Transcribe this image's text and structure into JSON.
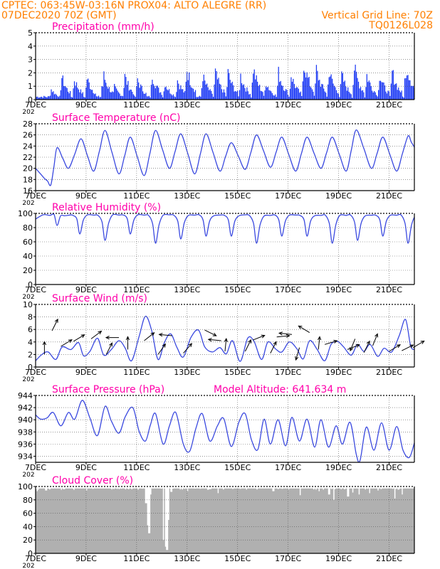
{
  "header": {
    "line1_left": "CPTEC:   063:45W-03:16N   PROX04: ALTO ALEGRE (RR)",
    "line2_left": "07DEC2020 70Z (GMT)",
    "line2_right": "Vertical Grid Line: 70Z",
    "line3_right": "TQ0126L028"
  },
  "colors": {
    "header": "#ff7f00",
    "title": "#ff00aa",
    "series": "#3a49e0",
    "bars": "#1f3cf5",
    "cloud": "#b0b0b0",
    "arrows": "#000000"
  },
  "x_axis": {
    "range": [
      7,
      22
    ],
    "tick_values": [
      7,
      9,
      11,
      13,
      15,
      17,
      19,
      21
    ],
    "tick_labels": [
      "7DEC",
      "9DEC",
      "11DEC",
      "13DEC",
      "15DEC",
      "17DEC",
      "19DEC",
      "21DEC"
    ],
    "year_fragment": "202"
  },
  "chart_data": [
    {
      "type": "bar",
      "title": "Precipitation (mm/h)",
      "ylim": [
        0,
        5
      ],
      "yticks": [
        0,
        1,
        2,
        3,
        4,
        5
      ],
      "grid": true,
      "peaks": [
        {
          "day": 7.6,
          "value": 1.0
        },
        {
          "day": 8.0,
          "value": 2.3
        },
        {
          "day": 8.5,
          "value": 2.1
        },
        {
          "day": 9.0,
          "value": 2.2
        },
        {
          "day": 9.65,
          "value": 2.6
        },
        {
          "day": 10.1,
          "value": 1.2
        },
        {
          "day": 10.5,
          "value": 2.4
        },
        {
          "day": 11.0,
          "value": 2.1
        },
        {
          "day": 11.6,
          "value": 2.4
        },
        {
          "day": 12.1,
          "value": 1.6
        },
        {
          "day": 12.6,
          "value": 1.9
        },
        {
          "day": 12.95,
          "value": 3.2
        },
        {
          "day": 13.6,
          "value": 2.3
        },
        {
          "day": 14.1,
          "value": 2.6
        },
        {
          "day": 14.6,
          "value": 2.6
        },
        {
          "day": 15.1,
          "value": 2.3
        },
        {
          "day": 15.6,
          "value": 3.0
        },
        {
          "day": 16.1,
          "value": 1.7
        },
        {
          "day": 16.6,
          "value": 2.6
        },
        {
          "day": 17.1,
          "value": 2.4
        },
        {
          "day": 17.6,
          "value": 3.7
        },
        {
          "day": 18.1,
          "value": 2.9
        },
        {
          "day": 18.6,
          "value": 2.8
        },
        {
          "day": 19.1,
          "value": 2.4
        },
        {
          "day": 19.6,
          "value": 3.1
        },
        {
          "day": 20.1,
          "value": 2.4
        },
        {
          "day": 20.6,
          "value": 2.4
        },
        {
          "day": 21.1,
          "value": 2.7
        },
        {
          "day": 21.65,
          "value": 3.7
        }
      ]
    },
    {
      "type": "line",
      "title": "Surface Temperature (nC)",
      "ylim": [
        16,
        28
      ],
      "yticks": [
        16,
        18,
        20,
        22,
        24,
        26,
        28
      ],
      "grid": true,
      "min_points": [
        [
          7.35,
          18.2
        ],
        [
          7.6,
          17.0
        ],
        [
          8.3,
          20.0
        ],
        [
          9.3,
          19.5
        ],
        [
          10.3,
          19.0
        ],
        [
          11.3,
          18.7
        ],
        [
          12.3,
          20.0
        ],
        [
          13.3,
          19.0
        ],
        [
          14.3,
          19.5
        ],
        [
          15.3,
          19.8
        ],
        [
          16.3,
          20.2
        ],
        [
          17.3,
          19.5
        ],
        [
          18.3,
          20.0
        ],
        [
          19.3,
          19.5
        ],
        [
          20.3,
          20.0
        ],
        [
          21.3,
          19.5
        ]
      ],
      "max_points": [
        [
          7.85,
          23.7
        ],
        [
          8.8,
          25.3
        ],
        [
          9.75,
          26.8
        ],
        [
          10.75,
          25.6
        ],
        [
          11.75,
          26.8
        ],
        [
          12.75,
          26.2
        ],
        [
          13.75,
          26.2
        ],
        [
          14.75,
          24.6
        ],
        [
          15.75,
          26.0
        ],
        [
          16.75,
          25.6
        ],
        [
          17.75,
          25.6
        ],
        [
          18.75,
          25.6
        ],
        [
          19.7,
          26.9
        ],
        [
          20.75,
          25.6
        ],
        [
          21.75,
          25.8
        ]
      ],
      "start": [
        7.0,
        20.0
      ],
      "end": [
        22.0,
        23.8
      ]
    },
    {
      "type": "line",
      "title": "Relative Humidity (%)",
      "ylim": [
        0,
        100
      ],
      "yticks": [
        0,
        20,
        40,
        60,
        80,
        100
      ],
      "grid": true,
      "min_points": [
        [
          7.85,
          83
        ],
        [
          8.75,
          71
        ],
        [
          9.75,
          62
        ],
        [
          10.75,
          71
        ],
        [
          11.75,
          58
        ],
        [
          12.75,
          64
        ],
        [
          13.75,
          68
        ],
        [
          14.75,
          68
        ],
        [
          15.75,
          58
        ],
        [
          16.75,
          68
        ],
        [
          17.75,
          68
        ],
        [
          18.75,
          58
        ],
        [
          19.75,
          62
        ],
        [
          20.75,
          68
        ],
        [
          21.75,
          58
        ]
      ],
      "high_level": 98
    },
    {
      "type": "line",
      "title": "Surface Wind (m/s)",
      "ylim": [
        0,
        10
      ],
      "yticks": [
        0,
        2,
        4,
        6,
        8,
        10
      ],
      "grid": true,
      "series_points": [
        [
          7.0,
          1.0
        ],
        [
          7.25,
          2.0
        ],
        [
          7.5,
          2.4
        ],
        [
          7.8,
          1.2
        ],
        [
          8.05,
          3.2
        ],
        [
          8.4,
          2.8
        ],
        [
          8.7,
          3.9
        ],
        [
          8.9,
          1.8
        ],
        [
          9.15,
          2.5
        ],
        [
          9.45,
          4.6
        ],
        [
          9.7,
          1.9
        ],
        [
          10.0,
          2.8
        ],
        [
          10.3,
          4.2
        ],
        [
          10.55,
          3.0
        ],
        [
          10.8,
          1.0
        ],
        [
          11.1,
          4.9
        ],
        [
          11.35,
          8.1
        ],
        [
          11.6,
          5.8
        ],
        [
          11.85,
          1.2
        ],
        [
          12.1,
          3.9
        ],
        [
          12.35,
          5.3
        ],
        [
          12.6,
          3.1
        ],
        [
          12.85,
          1.6
        ],
        [
          13.15,
          4.7
        ],
        [
          13.45,
          5.9
        ],
        [
          13.7,
          3.2
        ],
        [
          14.0,
          2.4
        ],
        [
          14.3,
          3.1
        ],
        [
          14.55,
          2.1
        ],
        [
          14.8,
          4.2
        ],
        [
          15.1,
          0.9
        ],
        [
          15.4,
          4.6
        ],
        [
          15.65,
          4.1
        ],
        [
          15.95,
          1.2
        ],
        [
          16.2,
          4.0
        ],
        [
          16.5,
          2.9
        ],
        [
          16.75,
          2.4
        ],
        [
          17.05,
          4.0
        ],
        [
          17.35,
          2.9
        ],
        [
          17.6,
          1.3
        ],
        [
          17.85,
          4.2
        ],
        [
          18.15,
          2.8
        ],
        [
          18.45,
          1.0
        ],
        [
          18.7,
          3.6
        ],
        [
          18.95,
          4.1
        ],
        [
          19.2,
          3.2
        ],
        [
          19.5,
          1.9
        ],
        [
          19.75,
          3.6
        ],
        [
          20.0,
          2.5
        ],
        [
          20.25,
          3.6
        ],
        [
          20.55,
          1.7
        ],
        [
          20.8,
          3.0
        ],
        [
          21.1,
          2.4
        ],
        [
          21.4,
          5.0
        ],
        [
          21.65,
          7.6
        ],
        [
          21.85,
          3.4
        ],
        [
          22.0,
          2.8
        ]
      ],
      "arrows": [
        {
          "day": 7.35,
          "speed": 2.0,
          "u": 0.0,
          "v": 1.0
        },
        {
          "day": 7.65,
          "speed": 5.8,
          "u": 0.5,
          "v": 1.0
        },
        {
          "day": 8.0,
          "speed": 3.3,
          "u": 1.0,
          "v": 0.6
        },
        {
          "day": 8.5,
          "speed": 4.1,
          "u": 1.0,
          "v": 0.6
        },
        {
          "day": 9.2,
          "speed": 4.5,
          "u": 0.8,
          "v": 0.6
        },
        {
          "day": 9.8,
          "speed": 2.0,
          "u": 0.5,
          "v": 1.0
        },
        {
          "day": 10.3,
          "speed": 4.7,
          "u": -1.0,
          "v": 0.0
        },
        {
          "day": 10.65,
          "speed": 2.8,
          "u": 0.0,
          "v": 1.0
        },
        {
          "day": 11.3,
          "speed": 4.2,
          "u": 1.0,
          "v": 0.8
        },
        {
          "day": 11.85,
          "speed": 2.0,
          "u": 0.7,
          "v": 1.0
        },
        {
          "day": 12.4,
          "speed": 5.0,
          "u": -1.0,
          "v": 0.1
        },
        {
          "day": 12.85,
          "speed": 2.2,
          "u": 0.7,
          "v": 0.8
        },
        {
          "day": 13.7,
          "speed": 5.9,
          "u": 1.0,
          "v": -0.5
        },
        {
          "day": 14.35,
          "speed": 4.2,
          "u": -1.0,
          "v": 0.1
        },
        {
          "day": 14.5,
          "speed": 2.5,
          "u": 0.1,
          "v": 1.0
        },
        {
          "day": 15.3,
          "speed": 2.5,
          "u": 0.5,
          "v": 1.0
        },
        {
          "day": 15.6,
          "speed": 4.3,
          "u": 1.0,
          "v": 0.4
        },
        {
          "day": 16.3,
          "speed": 2.2,
          "u": 0.5,
          "v": 1.0
        },
        {
          "day": 16.55,
          "speed": 4.8,
          "u": 1.0,
          "v": 0.1
        },
        {
          "day": 17.15,
          "speed": 5.2,
          "u": -1.0,
          "v": 0.1
        },
        {
          "day": 17.45,
          "speed": 3.1,
          "u": -0.3,
          "v": -1.0
        },
        {
          "day": 17.85,
          "speed": 5.5,
          "u": -1.0,
          "v": 0.6
        },
        {
          "day": 18.2,
          "speed": 2.8,
          "u": 0.1,
          "v": 1.0
        },
        {
          "day": 18.45,
          "speed": 3.6,
          "u": 1.0,
          "v": 0.3
        },
        {
          "day": 19.35,
          "speed": 2.8,
          "u": 1.0,
          "v": 0.4
        },
        {
          "day": 19.65,
          "speed": 4.5,
          "u": -0.4,
          "v": -1.0
        },
        {
          "day": 20.0,
          "speed": 2.3,
          "u": 0.5,
          "v": 1.0
        },
        {
          "day": 20.35,
          "speed": 3.4,
          "u": 0.4,
          "v": 1.0
        },
        {
          "day": 21.0,
          "speed": 2.5,
          "u": 1.0,
          "v": 0.6
        },
        {
          "day": 21.5,
          "speed": 2.6,
          "u": 1.0,
          "v": 0.5
        },
        {
          "day": 21.95,
          "speed": 3.1,
          "u": 1.0,
          "v": 0.6
        }
      ]
    },
    {
      "type": "line",
      "title": "Surface Pressure (hPa)",
      "annotation": "Model Altitude: 641.634 m",
      "ylim": [
        933,
        944
      ],
      "yticks": [
        934,
        936,
        938,
        940,
        942,
        944
      ],
      "grid": true,
      "series_points": [
        [
          7.0,
          940.8
        ],
        [
          7.2,
          940.1
        ],
        [
          7.45,
          940.3
        ],
        [
          7.7,
          941.2
        ],
        [
          8.0,
          939.0
        ],
        [
          8.3,
          941.2
        ],
        [
          8.55,
          940.1
        ],
        [
          8.85,
          943.2
        ],
        [
          9.15,
          940.3
        ],
        [
          9.45,
          937.4
        ],
        [
          9.75,
          942.2
        ],
        [
          10.0,
          939.8
        ],
        [
          10.3,
          937.8
        ],
        [
          10.55,
          940.5
        ],
        [
          10.85,
          942.0
        ],
        [
          11.1,
          938.1
        ],
        [
          11.35,
          936.5
        ],
        [
          11.55,
          939.2
        ],
        [
          11.75,
          941.0
        ],
        [
          12.05,
          936.0
        ],
        [
          12.3,
          939.0
        ],
        [
          12.55,
          941.2
        ],
        [
          12.85,
          936.0
        ],
        [
          13.1,
          934.8
        ],
        [
          13.35,
          938.6
        ],
        [
          13.6,
          941.0
        ],
        [
          13.9,
          936.5
        ],
        [
          14.2,
          939.0
        ],
        [
          14.45,
          940.2
        ],
        [
          14.75,
          935.6
        ],
        [
          15.05,
          939.6
        ],
        [
          15.3,
          941.0
        ],
        [
          15.55,
          936.7
        ],
        [
          15.8,
          935.1
        ],
        [
          16.05,
          940.1
        ],
        [
          16.3,
          936.0
        ],
        [
          16.6,
          940.0
        ],
        [
          16.9,
          935.7
        ],
        [
          17.15,
          940.4
        ],
        [
          17.45,
          936.5
        ],
        [
          17.75,
          940.1
        ],
        [
          18.05,
          935.5
        ],
        [
          18.3,
          940.0
        ],
        [
          18.6,
          935.5
        ],
        [
          18.9,
          939.0
        ],
        [
          19.15,
          936.0
        ],
        [
          19.45,
          939.6
        ],
        [
          19.7,
          934.3
        ],
        [
          19.85,
          933.3
        ],
        [
          20.1,
          938.8
        ],
        [
          20.4,
          935.0
        ],
        [
          20.7,
          939.5
        ],
        [
          21.0,
          935.0
        ],
        [
          21.3,
          938.9
        ],
        [
          21.55,
          935.0
        ],
        [
          21.8,
          933.8
        ],
        [
          22.0,
          936.2
        ]
      ]
    },
    {
      "type": "area",
      "title": "Cloud Cover (%)",
      "ylim": [
        0,
        100
      ],
      "yticks": [
        0,
        20,
        40,
        60,
        80,
        100
      ],
      "grid": true,
      "baseline": 97,
      "dips": [
        {
          "day": 7.05,
          "value": 93
        },
        {
          "day": 7.4,
          "value": 94
        },
        {
          "day": 8.0,
          "value": 95
        },
        {
          "day": 8.5,
          "value": 95
        },
        {
          "day": 9.0,
          "value": 94
        },
        {
          "day": 10.3,
          "value": 96
        },
        {
          "day": 11.35,
          "value": 75
        },
        {
          "day": 11.42,
          "value": 42
        },
        {
          "day": 11.48,
          "value": 30
        },
        {
          "day": 11.55,
          "value": 88
        },
        {
          "day": 12.05,
          "value": 20
        },
        {
          "day": 12.12,
          "value": 10
        },
        {
          "day": 12.18,
          "value": 5
        },
        {
          "day": 12.25,
          "value": 50
        },
        {
          "day": 12.35,
          "value": 92
        },
        {
          "day": 13.0,
          "value": 93
        },
        {
          "day": 14.2,
          "value": 90
        },
        {
          "day": 16.4,
          "value": 93
        },
        {
          "day": 17.45,
          "value": 87
        },
        {
          "day": 18.2,
          "value": 93
        },
        {
          "day": 18.6,
          "value": 88
        },
        {
          "day": 18.8,
          "value": 80
        },
        {
          "day": 19.35,
          "value": 85
        },
        {
          "day": 19.55,
          "value": 91
        },
        {
          "day": 19.8,
          "value": 88
        },
        {
          "day": 20.2,
          "value": 90
        },
        {
          "day": 20.55,
          "value": 94
        },
        {
          "day": 21.2,
          "value": 82
        },
        {
          "day": 21.5,
          "value": 88
        }
      ]
    }
  ]
}
